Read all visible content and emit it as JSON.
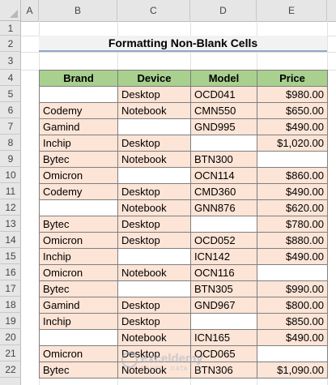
{
  "columns": [
    "A",
    "B",
    "C",
    "D",
    "E"
  ],
  "rows": [
    "1",
    "2",
    "3",
    "4",
    "5",
    "6",
    "7",
    "8",
    "9",
    "10",
    "11",
    "12",
    "13",
    "14",
    "15",
    "16",
    "17",
    "18",
    "19",
    "20",
    "21",
    "22"
  ],
  "title": "Formatting Non-Blank Cells",
  "headers": [
    "Brand",
    "Device",
    "Model",
    "Price"
  ],
  "data": [
    [
      "",
      "Desktop",
      "OCD041",
      "$980.00"
    ],
    [
      "Codemy",
      "Notebook",
      "CMN550",
      "$650.00"
    ],
    [
      "Gamind",
      "",
      "GND995",
      "$490.00"
    ],
    [
      "Inchip",
      "Desktop",
      "",
      "$1,020.00"
    ],
    [
      "Bytec",
      "Notebook",
      "BTN300",
      ""
    ],
    [
      "Omicron",
      "",
      "OCN114",
      "$860.00"
    ],
    [
      "Codemy",
      "Desktop",
      "CMD360",
      "$490.00"
    ],
    [
      "",
      "Notebook",
      "GNN876",
      "$620.00"
    ],
    [
      "Bytec",
      "Desktop",
      "",
      "$780.00"
    ],
    [
      "Omicron",
      "Desktop",
      "OCD052",
      "$880.00"
    ],
    [
      "Inchip",
      "",
      "ICN142",
      "$490.00"
    ],
    [
      "Omicron",
      "Notebook",
      "OCN116",
      ""
    ],
    [
      "Bytec",
      "",
      "BTN305",
      "$990.00"
    ],
    [
      "Gamind",
      "Desktop",
      "GND967",
      "$800.00"
    ],
    [
      "Inchip",
      "Desktop",
      "",
      "$850.00"
    ],
    [
      "",
      "Notebook",
      "ICN165",
      "$490.00"
    ],
    [
      "Omicron",
      "Desktop",
      "OCD065",
      ""
    ],
    [
      "Bytec",
      "Notebook",
      "BTN306",
      "$1,090.00"
    ]
  ],
  "colors": {
    "header_fill": "#a9d08e",
    "nonblank_fill": "#fce4d6",
    "title_underline": "#8fa9c8"
  },
  "watermark": {
    "name": "exceldemy",
    "tagline": "EXCEL · DATA · BI"
  }
}
